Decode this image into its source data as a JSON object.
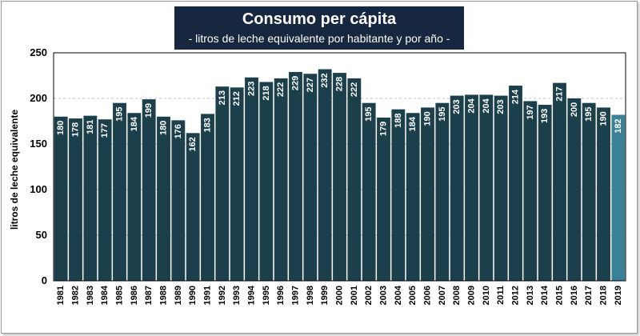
{
  "chart_data": {
    "type": "bar",
    "title": "Consumo per cápita",
    "subtitle": "- litros de leche equivalente por habitante y por año -",
    "ylabel": "litros de leche equivalente",
    "xlabel": "",
    "ylim": [
      0,
      250
    ],
    "yticks": [
      0,
      50,
      100,
      150,
      200,
      250
    ],
    "grid": true,
    "categories": [
      "1981",
      "1982",
      "1983",
      "1984",
      "1985",
      "1986",
      "1987",
      "1988",
      "1989",
      "1990",
      "1991",
      "1992",
      "1993",
      "1994",
      "1995",
      "1996",
      "1997",
      "1998",
      "1999",
      "2000",
      "2001",
      "2002",
      "2003",
      "2004",
      "2005",
      "2006",
      "2007",
      "2008",
      "2009",
      "2010",
      "2011",
      "2012",
      "2013",
      "2014",
      "2015",
      "2016",
      "2017",
      "2018",
      "2019"
    ],
    "values": [
      180,
      178,
      181,
      177,
      195,
      184,
      199,
      180,
      176,
      162,
      183,
      213,
      212,
      223,
      218,
      222,
      229,
      227,
      232,
      228,
      222,
      195,
      179,
      188,
      184,
      190,
      195,
      203,
      204,
      204,
      203,
      214,
      197,
      193,
      217,
      200,
      195,
      190,
      182
    ],
    "colors": {
      "bar": "#1b3f4b",
      "highlight": "#3a8197",
      "grid": "#bfbfbf"
    },
    "highlight_index": 38
  }
}
